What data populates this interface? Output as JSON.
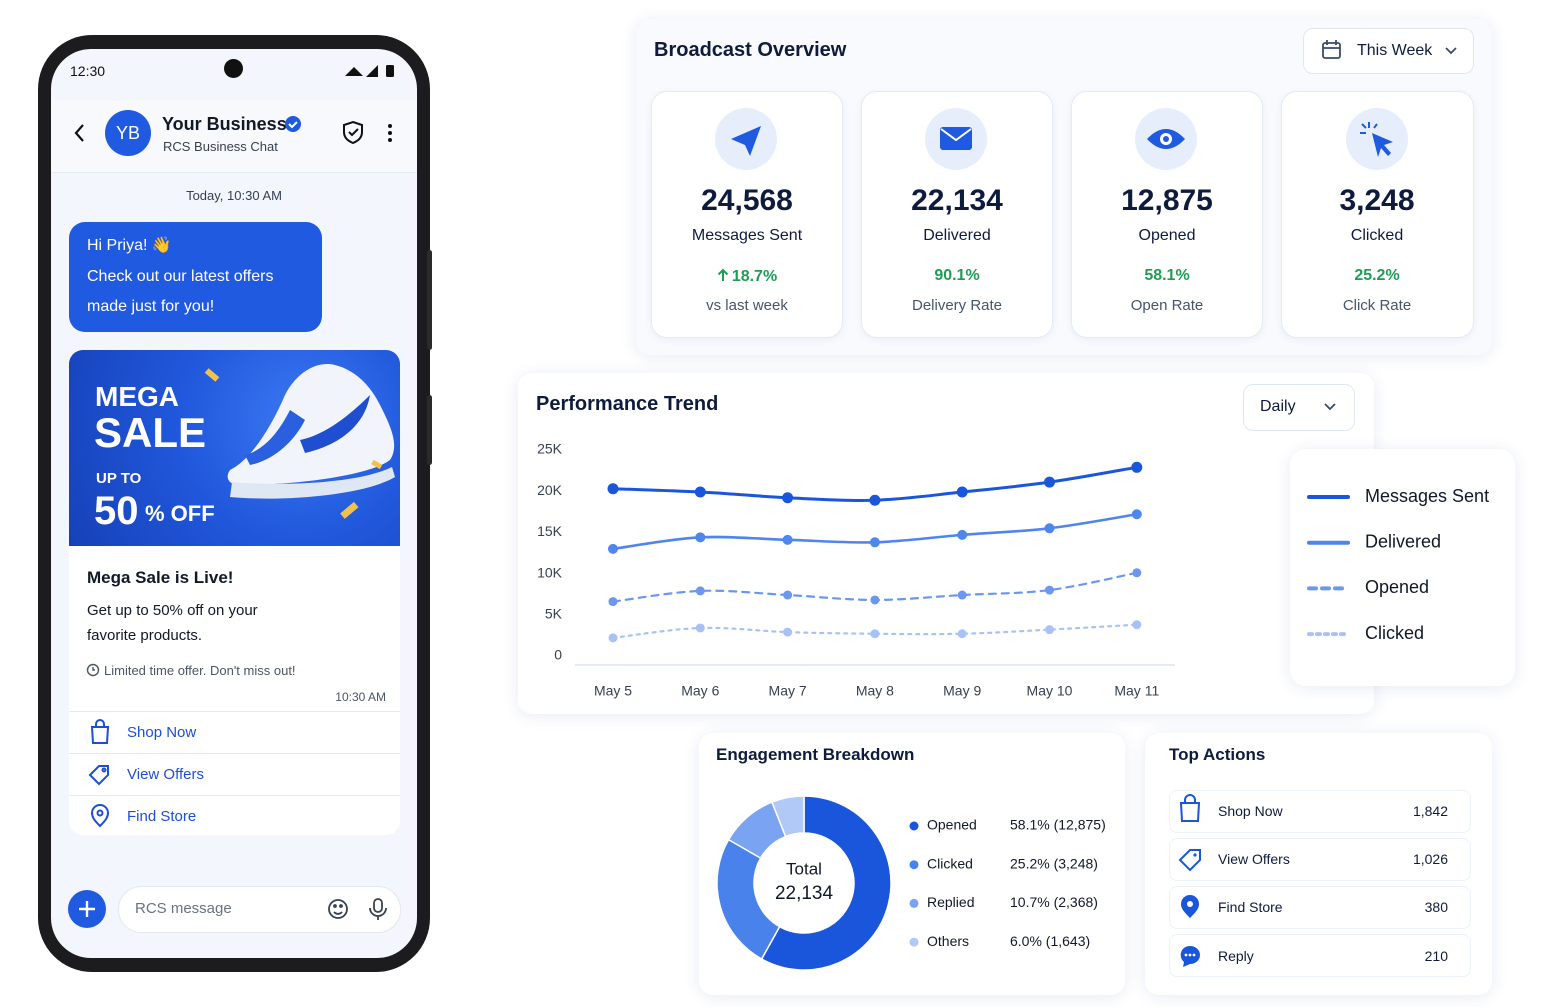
{
  "phone": {
    "time": "12:30",
    "business_name": "Your Business",
    "business_subtitle": "RCS Business Chat",
    "avatar": "YB",
    "timestamp": "Today, 10:30 AM",
    "greeting_lines": [
      "Hi Priya! 👋",
      "Check out our latest offers",
      "made just for you!"
    ],
    "promo": {
      "line1": "MEGA",
      "line2": "SALE",
      "prefix": "UP TO",
      "discount": "50",
      "suffix": "% OFF"
    },
    "card": {
      "title": "Mega Sale is Live!",
      "body_lines": [
        "Get up to 50% off on your",
        "favorite products."
      ],
      "note": "Limited time offer. Don't miss out!",
      "time": "10:30 AM"
    },
    "actions": [
      "Shop Now",
      "View Offers",
      "Find Store"
    ],
    "input_placeholder": "RCS message"
  },
  "broadcast": {
    "title": "Broadcast Overview",
    "period": "This Week",
    "stats": [
      {
        "value": "24,568",
        "label": "Messages Sent",
        "metric": "18.7%",
        "note": "vs last week"
      },
      {
        "value": "22,134",
        "label": "Delivered",
        "metric": "90.1%",
        "note": "Delivery Rate"
      },
      {
        "value": "12,875",
        "label": "Opened",
        "metric": "58.1%",
        "note": "Open Rate"
      },
      {
        "value": "3,248",
        "label": "Clicked",
        "metric": "25.2%",
        "note": "Click Rate"
      }
    ]
  },
  "performance_filter": "Daily",
  "top_actions": {
    "title": "Top Actions",
    "rows": [
      {
        "label": "Shop Now",
        "count": "1,842"
      },
      {
        "label": "View Offers",
        "count": "1,026"
      },
      {
        "label": "Find Store",
        "count": "380"
      },
      {
        "label": "Reply",
        "count": "210"
      }
    ]
  },
  "chart_data": [
    {
      "type": "line",
      "title": "Performance Trend",
      "categories": [
        "May 5",
        "May 6",
        "May 7",
        "May 8",
        "May 9",
        "May 10",
        "May 11"
      ],
      "series": [
        {
          "name": "Messages Sent",
          "color": "#1a56db",
          "style": "solid",
          "values": [
            20300,
            19900,
            19200,
            18900,
            19900,
            21100,
            22900
          ]
        },
        {
          "name": "Delivered",
          "color": "#4f86ee",
          "style": "solid",
          "values": [
            13000,
            14400,
            14100,
            13800,
            14700,
            15500,
            17200
          ]
        },
        {
          "name": "Opened",
          "color": "#6b97f0",
          "style": "dashed",
          "values": [
            6600,
            7900,
            7400,
            6800,
            7400,
            8000,
            10100
          ]
        },
        {
          "name": "Clicked",
          "color": "#a8c2f5",
          "style": "dotted",
          "values": [
            2200,
            3400,
            2900,
            2700,
            2700,
            3200,
            3800
          ]
        }
      ],
      "ylim": [
        0,
        25000
      ],
      "yticks": [
        {
          "value": 0,
          "label": "0"
        },
        {
          "value": 5000,
          "label": "5K"
        },
        {
          "value": 10000,
          "label": "10K"
        },
        {
          "value": 15000,
          "label": "15K"
        },
        {
          "value": 20000,
          "label": "20K"
        },
        {
          "value": 25000,
          "label": "25K"
        }
      ],
      "grid": false
    },
    {
      "type": "pie",
      "title": "Engagement Breakdown",
      "donut": true,
      "center_text": [
        "Total",
        "22,134"
      ],
      "categories": [
        "Opened",
        "Clicked",
        "Replied",
        "Others"
      ],
      "values": [
        58.1,
        25.2,
        10.7,
        6.0
      ],
      "value_labels": [
        "58.1% (12,875)",
        "25.2% (3,248)",
        "10.7% (2,368)",
        "6.0% (1,643)"
      ],
      "colors": [
        "#1a56db",
        "#4a82ec",
        "#7aa3f2",
        "#b1c9f6"
      ]
    }
  ]
}
